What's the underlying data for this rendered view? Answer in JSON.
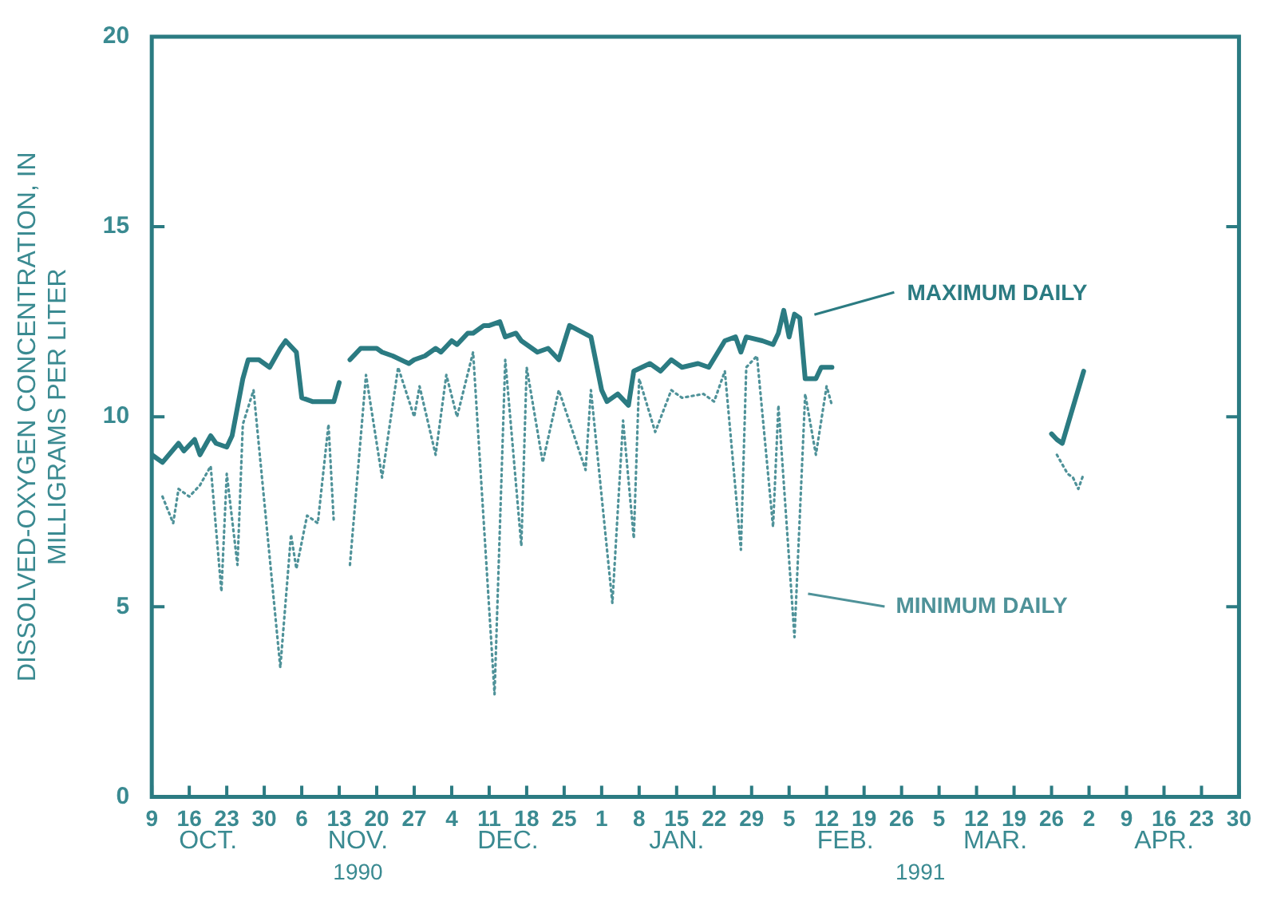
{
  "chart_data": {
    "type": "line",
    "ylabel": "DISSOLVED-OXYGEN CONCENTRATION, IN\nMILLIGRAMS PER LITER",
    "xlim": [
      "1990-10-09",
      "1991-04-30"
    ],
    "xticks": [
      {
        "value": "1990-10-09",
        "label": "9"
      },
      {
        "value": "1990-10-16",
        "label": "16"
      },
      {
        "value": "1990-10-23",
        "label": "23"
      },
      {
        "value": "1990-10-30",
        "label": "30"
      },
      {
        "value": "1990-11-06",
        "label": "6"
      },
      {
        "value": "1990-11-13",
        "label": "13"
      },
      {
        "value": "1990-11-20",
        "label": "20"
      },
      {
        "value": "1990-11-27",
        "label": "27"
      },
      {
        "value": "1990-12-04",
        "label": "4"
      },
      {
        "value": "1990-12-11",
        "label": "11"
      },
      {
        "value": "1990-12-18",
        "label": "18"
      },
      {
        "value": "1990-12-25",
        "label": "25"
      },
      {
        "value": "1991-01-01",
        "label": "1"
      },
      {
        "value": "1991-01-08",
        "label": "8"
      },
      {
        "value": "1991-01-15",
        "label": "15"
      },
      {
        "value": "1991-01-22",
        "label": "22"
      },
      {
        "value": "1991-01-29",
        "label": "29"
      },
      {
        "value": "1991-02-05",
        "label": "5"
      },
      {
        "value": "1991-02-12",
        "label": "12"
      },
      {
        "value": "1991-02-19",
        "label": "19"
      },
      {
        "value": "1991-02-26",
        "label": "26"
      },
      {
        "value": "1991-03-05",
        "label": "5"
      },
      {
        "value": "1991-03-12",
        "label": "12"
      },
      {
        "value": "1991-03-19",
        "label": "19"
      },
      {
        "value": "1991-03-26",
        "label": "26"
      },
      {
        "value": "1991-04-02",
        "label": "2"
      },
      {
        "value": "1991-04-09",
        "label": "9"
      },
      {
        "value": "1991-04-16",
        "label": "16"
      },
      {
        "value": "1991-04-23",
        "label": "23"
      },
      {
        "value": "1991-04-30",
        "label": "30"
      }
    ],
    "ylim": [
      0,
      20
    ],
    "yticks": [
      0,
      5,
      10,
      15,
      20
    ],
    "annotations": [
      "OCT.",
      "NOV.",
      "DEC.",
      "JAN.",
      "FEB.",
      "MAR.",
      "APR.",
      "1990",
      "1991"
    ],
    "legend": "right",
    "series": [
      {
        "name": "MAXIMUM DAILY",
        "color": "#2b7b82",
        "line_style": "solid",
        "x": [
          "1990-10-09",
          "1990-10-11",
          "1990-10-14",
          "1990-10-15",
          "1990-10-17",
          "1990-10-18",
          "1990-10-20",
          "1990-10-21",
          "1990-10-23",
          "1990-10-24",
          "1990-10-26",
          "1990-10-27",
          "1990-10-29",
          "1990-10-31",
          "1990-11-02",
          "1990-11-03",
          "1990-11-05",
          "1990-11-06",
          "1990-11-08",
          "1990-11-10",
          "1990-11-12",
          "1990-11-13",
          "1990-11-14",
          "1990-11-15",
          "1990-11-17",
          "1990-11-20",
          "1990-11-21",
          "1990-11-23",
          "1990-11-26",
          "1990-11-27",
          "1990-11-29",
          "1990-12-01",
          "1990-12-02",
          "1990-12-04",
          "1990-12-05",
          "1990-12-07",
          "1990-12-08",
          "1990-12-10",
          "1990-12-11",
          "1990-12-13",
          "1990-12-14",
          "1990-12-16",
          "1990-12-17",
          "1990-12-20",
          "1990-12-22",
          "1990-12-24",
          "1990-12-26",
          "1990-12-30",
          "1991-01-01",
          "1991-01-02",
          "1991-01-04",
          "1991-01-06",
          "1991-01-07",
          "1991-01-10",
          "1991-01-12",
          "1991-01-14",
          "1991-01-16",
          "1991-01-19",
          "1991-01-21",
          "1991-01-24",
          "1991-01-26",
          "1991-01-27",
          "1991-01-28",
          "1991-01-31",
          "1991-02-02",
          "1991-02-03",
          "1991-02-04",
          "1991-02-05",
          "1991-02-06",
          "1991-02-07",
          "1991-02-08",
          "1991-02-10",
          "1991-02-11",
          "1991-02-13",
          "1991-03-01",
          "1991-03-26",
          "1991-03-27",
          "1991-03-28",
          "1991-04-01"
        ],
        "values": [
          9.0,
          8.8,
          9.3,
          9.1,
          9.4,
          9.0,
          9.5,
          9.3,
          9.2,
          9.5,
          11.0,
          11.5,
          11.5,
          11.3,
          11.8,
          12.0,
          11.7,
          10.5,
          10.4,
          10.4,
          10.4,
          10.9,
          null,
          11.5,
          11.8,
          11.8,
          11.7,
          11.6,
          11.4,
          11.5,
          11.6,
          11.8,
          11.7,
          12.0,
          11.9,
          12.2,
          12.2,
          12.4,
          12.4,
          12.5,
          12.1,
          12.2,
          12.0,
          11.7,
          11.8,
          11.5,
          12.4,
          12.1,
          10.7,
          10.4,
          10.6,
          10.3,
          11.2,
          11.4,
          11.2,
          11.5,
          11.3,
          11.4,
          11.3,
          12.0,
          12.1,
          11.7,
          12.1,
          12.0,
          11.9,
          12.2,
          12.8,
          12.1,
          12.7,
          12.6,
          11.0,
          11.0,
          11.3,
          11.3,
          null,
          9.55,
          9.4,
          9.3,
          11.2
        ]
      },
      {
        "name": "MINIMUM DAILY",
        "color": "#4f9299",
        "line_style": "dotted",
        "x": [
          "1990-10-11",
          "1990-10-13",
          "1990-10-14",
          "1990-10-16",
          "1990-10-18",
          "1990-10-20",
          "1990-10-22",
          "1990-10-23",
          "1990-10-25",
          "1990-10-26",
          "1990-10-28",
          "1990-11-02",
          "1990-11-04",
          "1990-11-05",
          "1990-11-07",
          "1990-11-09",
          "1990-11-11",
          "1990-11-12",
          "1990-11-14",
          "1990-11-15",
          "1990-11-18",
          "1990-11-21",
          "1990-11-24",
          "1990-11-27",
          "1990-11-28",
          "1990-12-01",
          "1990-12-03",
          "1990-12-05",
          "1990-12-08",
          "1990-12-12",
          "1990-12-14",
          "1990-12-17",
          "1990-12-18",
          "1990-12-21",
          "1990-12-24",
          "1990-12-29",
          "1990-12-30",
          "1991-01-03",
          "1991-01-05",
          "1991-01-07",
          "1991-01-08",
          "1991-01-11",
          "1991-01-14",
          "1991-01-16",
          "1991-01-20",
          "1991-01-22",
          "1991-01-24",
          "1991-01-27",
          "1991-01-28",
          "1991-01-30",
          "1991-02-02",
          "1991-02-03",
          "1991-02-06",
          "1991-02-08",
          "1991-02-10",
          "1991-02-12",
          "1991-02-13",
          "1991-03-01",
          "1991-03-27",
          "1991-03-29",
          "1991-03-30",
          "1991-03-31",
          "1991-04-01"
        ],
        "values": [
          7.9,
          7.2,
          8.1,
          7.9,
          8.2,
          8.7,
          5.4,
          8.5,
          6.1,
          9.8,
          10.7,
          3.4,
          6.9,
          6.0,
          7.4,
          7.2,
          9.8,
          7.2,
          null,
          6.1,
          11.1,
          8.4,
          11.3,
          10.0,
          10.8,
          9.0,
          11.1,
          10.0,
          11.7,
          2.7,
          11.5,
          6.6,
          11.3,
          8.8,
          10.7,
          8.6,
          10.7,
          5.1,
          9.9,
          6.8,
          11.0,
          9.6,
          10.7,
          10.5,
          10.6,
          10.4,
          11.2,
          6.5,
          11.3,
          11.6,
          7.1,
          10.3,
          4.2,
          10.6,
          9.0,
          10.8,
          10.3,
          null,
          9.0,
          8.5,
          8.4,
          8.1,
          8.5
        ]
      }
    ]
  }
}
